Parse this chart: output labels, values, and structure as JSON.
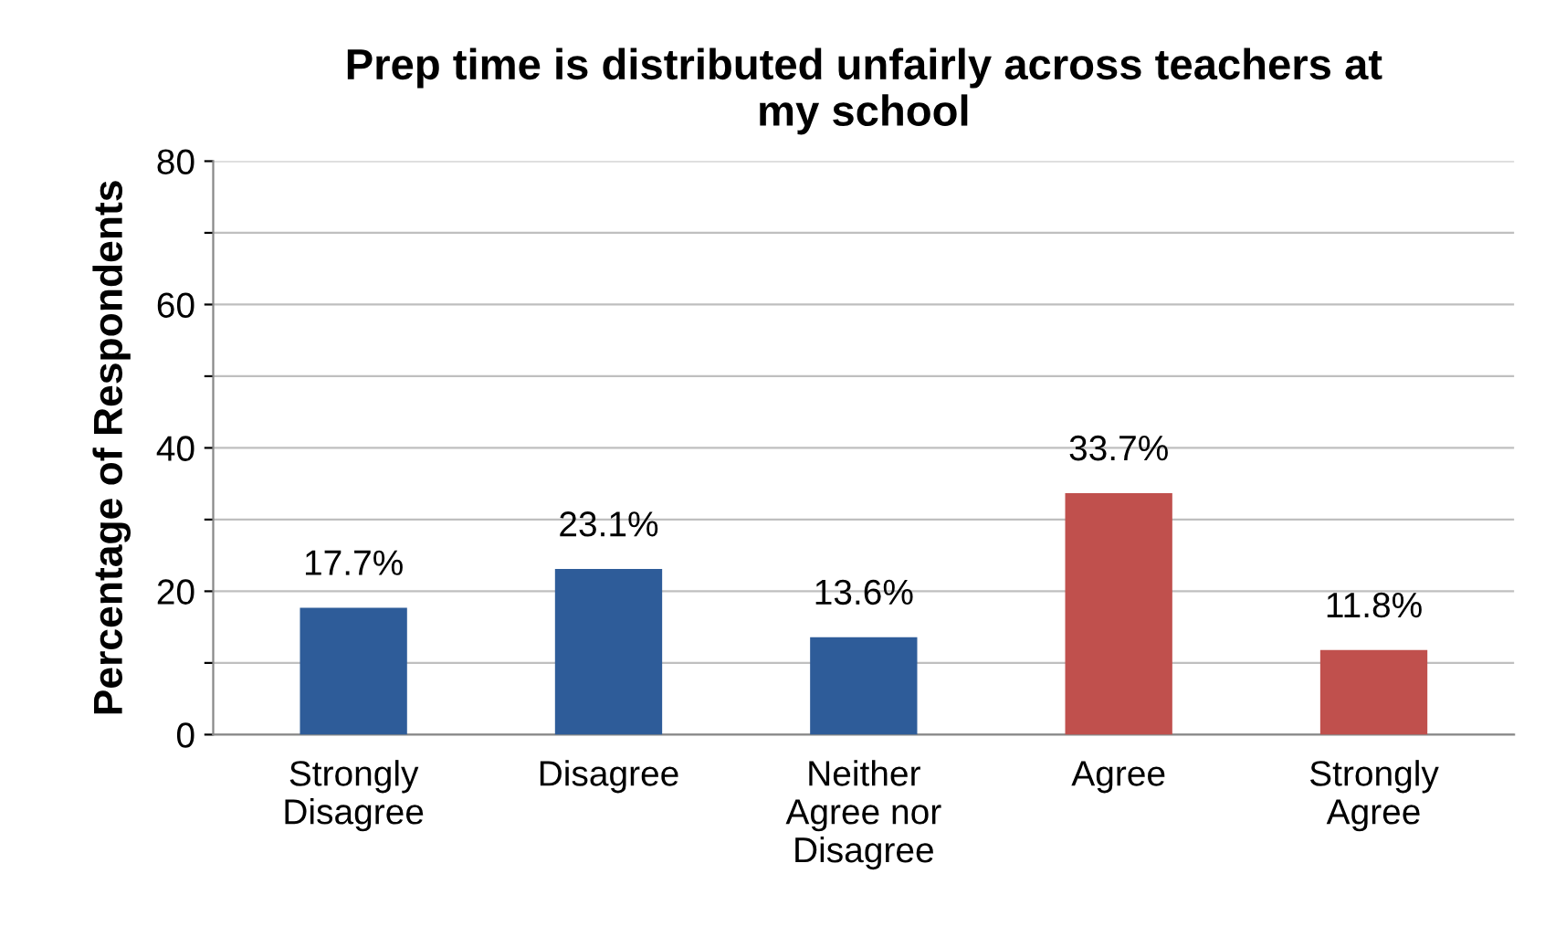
{
  "chart_data": {
    "type": "bar",
    "title": "Prep time is distributed unfairly across teachers at\nmy school",
    "ylabel": "Percentage of Respondents",
    "categories": [
      "Strongly\nDisagree",
      "Disagree",
      "Neither\nAgree nor\nDisagree",
      "Agree",
      "Strongly\nAgree"
    ],
    "values": [
      17.7,
      23.1,
      13.6,
      33.7,
      11.8
    ],
    "colors": [
      "#2e5c99",
      "#2e5c99",
      "#2e5c99",
      "#c0504d",
      "#c0504d"
    ],
    "value_labels": [
      "17.7%",
      "23.1%",
      "13.6%",
      "33.7%",
      "11.8%"
    ],
    "ylim": [
      0,
      80
    ],
    "yticks": [
      0,
      {
        "value": 10,
        "label": null
      },
      20,
      {
        "value": 30,
        "label": null
      },
      40,
      {
        "value": 50,
        "label": null
      },
      60,
      {
        "value": 70,
        "label": null
      },
      80
    ],
    "grid": "y",
    "legend": false
  }
}
